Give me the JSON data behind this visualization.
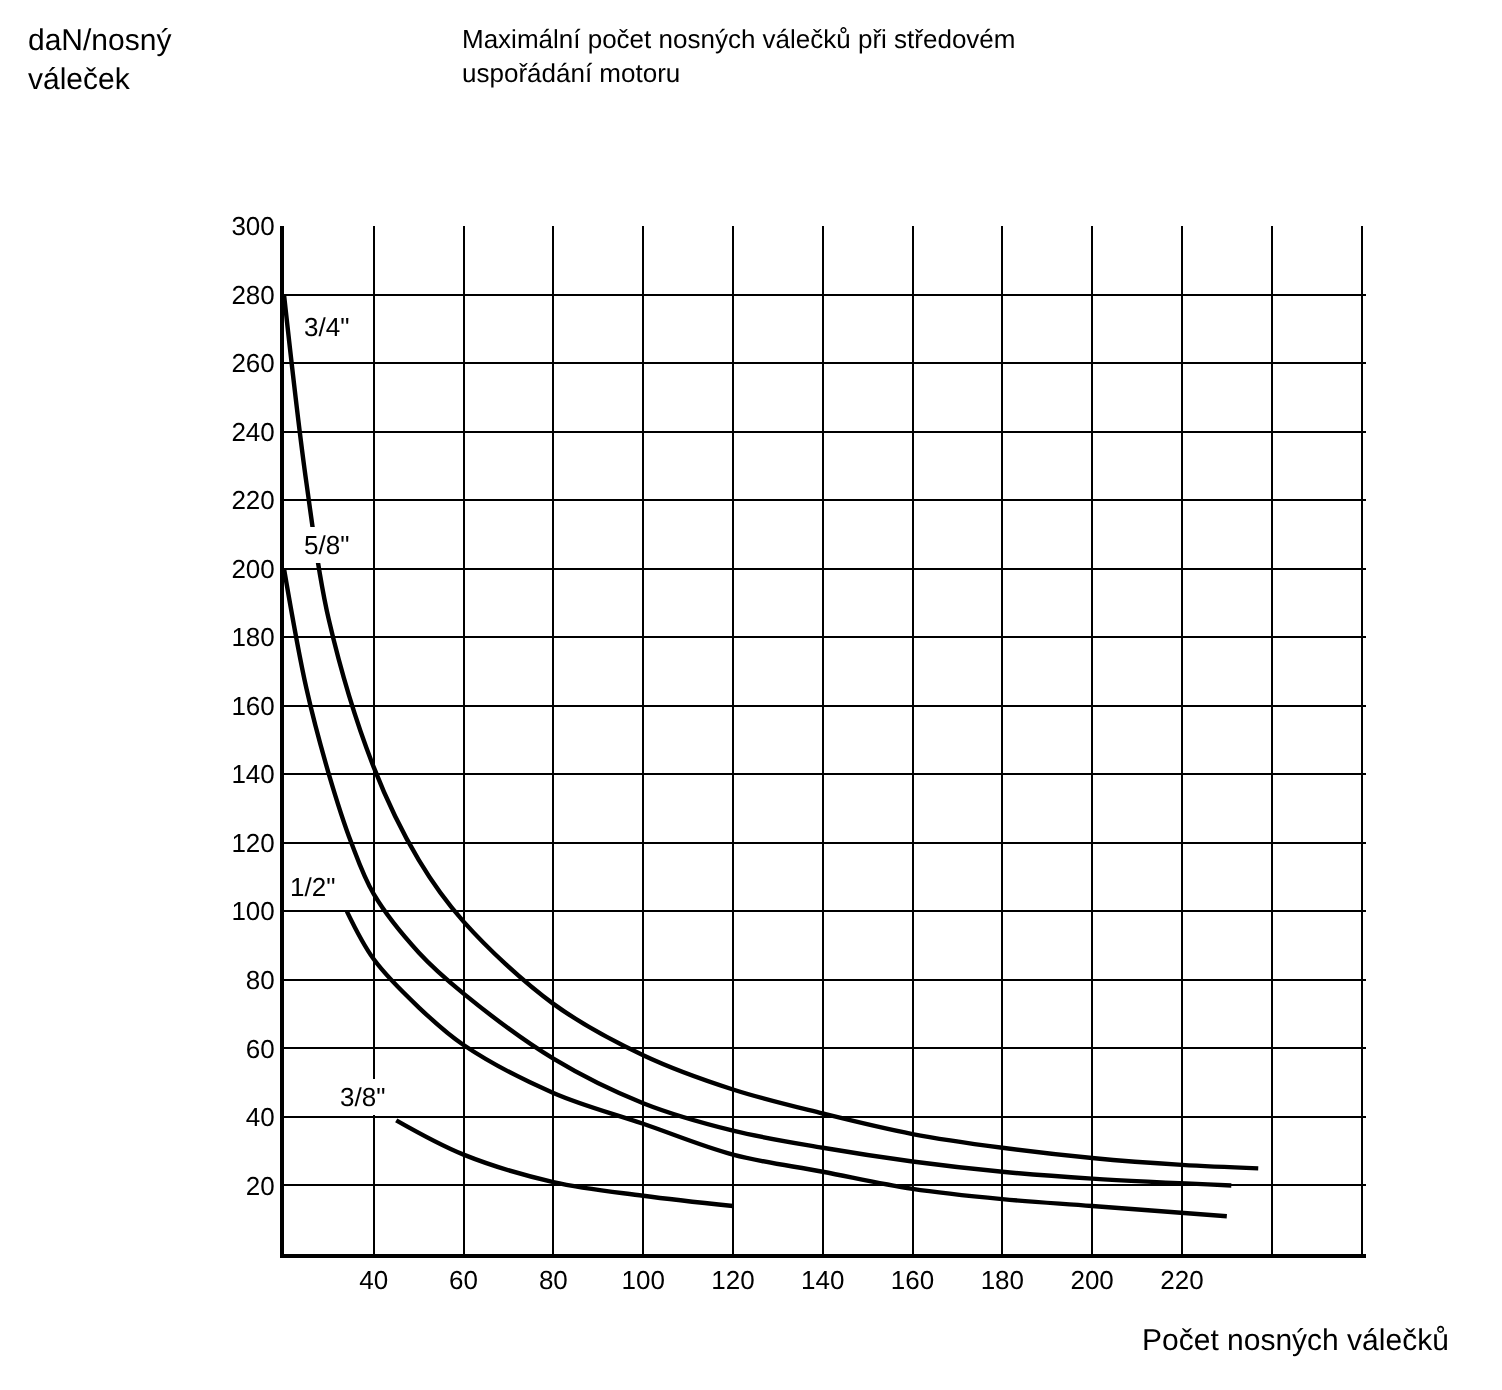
{
  "chart_data": {
    "type": "line",
    "title": "Maximální počet nosných válečků při středovém uspořádání motoru",
    "xlabel": "Počet nosných válečků",
    "ylabel": "daN/nosný váleček",
    "xlim": [
      20,
      261
    ],
    "xticks": [
      40,
      60,
      80,
      100,
      120,
      140,
      160,
      180,
      200,
      220,
      {
        "value": 240,
        "label": null
      },
      {
        "value": 260,
        "label": null
      }
    ],
    "ylim": [
      0,
      300
    ],
    "yticks": [
      20,
      40,
      60,
      80,
      100,
      120,
      140,
      160,
      180,
      200,
      220,
      240,
      260,
      280,
      300
    ],
    "grid": true,
    "legend": false,
    "marker": "none",
    "line_style": "solid",
    "series": [
      {
        "name": "3/4\"",
        "color": "#000000",
        "x": [
          20,
          25,
          30,
          40,
          50,
          60,
          80,
          100,
          120,
          140,
          160,
          180,
          200,
          220,
          237
        ],
        "values": [
          280,
          225,
          185,
          142,
          115,
          97,
          73,
          58,
          48,
          41,
          35,
          31,
          28,
          26,
          25
        ]
      },
      {
        "name": "5/8\"",
        "color": "#000000",
        "x": [
          20,
          25,
          30,
          35,
          40,
          50,
          60,
          80,
          100,
          120,
          140,
          160,
          180,
          200,
          231
        ],
        "values": [
          200,
          165,
          140,
          120,
          105,
          88,
          76,
          57,
          44,
          36,
          31,
          27,
          24,
          22,
          20
        ]
      },
      {
        "name": "1/2\"",
        "color": "#000000",
        "x": [
          34,
          40,
          50,
          60,
          80,
          100,
          120,
          140,
          160,
          180,
          200,
          230
        ],
        "values": [
          100,
          86,
          72,
          61,
          47,
          38,
          29,
          24,
          19,
          16,
          14,
          11
        ]
      },
      {
        "name": "3/8\"",
        "color": "#000000",
        "x": [
          45,
          60,
          80,
          100,
          120
        ],
        "values": [
          39,
          29,
          21,
          17,
          14
        ]
      }
    ]
  }
}
